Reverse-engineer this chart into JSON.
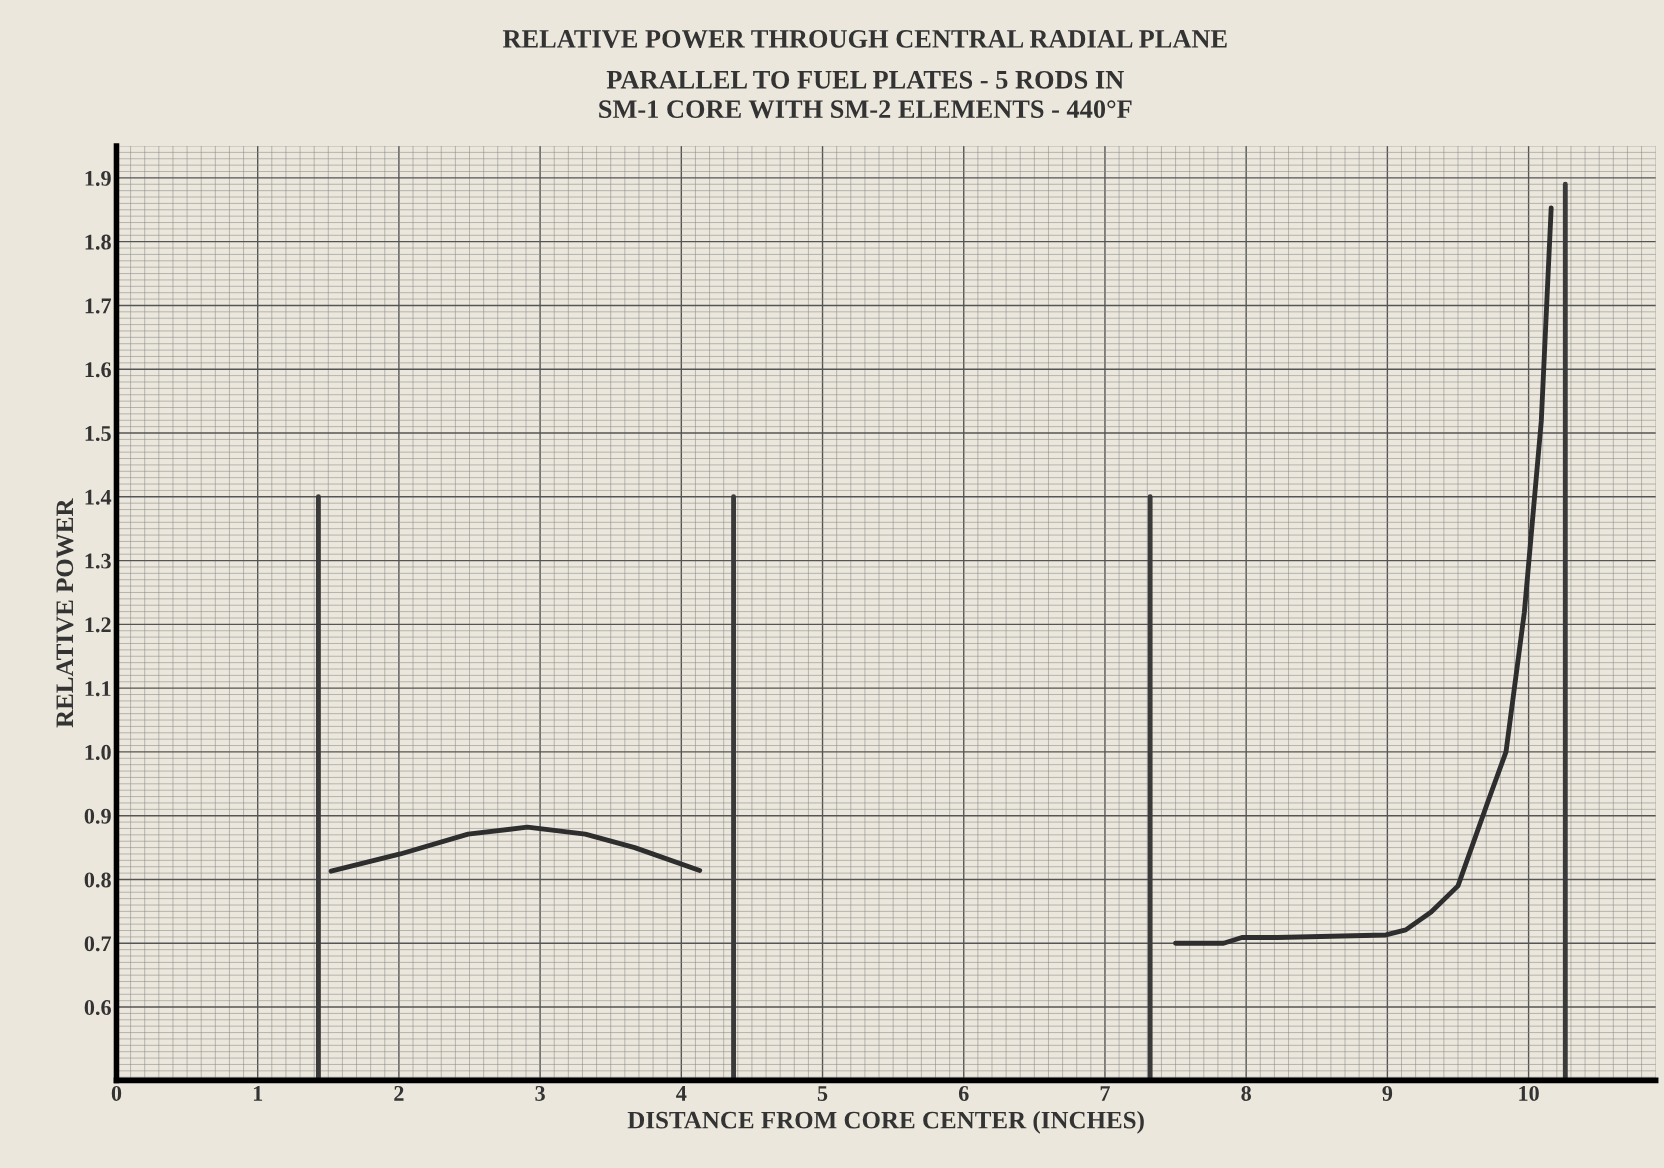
{
  "chart_data": {
    "type": "line",
    "title": "RELATIVE POWER THROUGH CENTRAL RADIAL PLANE",
    "subtitle": "PARALLEL TO FUEL PLATES - 5 RODS IN\nSM-1 CORE WITH SM-2 ELEMENTS - 440°F",
    "xlabel": "DISTANCE FROM CORE CENTER (INCHES)",
    "ylabel": "RELATIVE POWER",
    "xlim": [
      0,
      10.9
    ],
    "ylim": [
      0.485,
      1.95
    ],
    "xticks": [
      0,
      1,
      2,
      3,
      4,
      5,
      6,
      7,
      8,
      9,
      10
    ],
    "yticks": [
      0.6,
      0.7,
      0.8,
      0.9,
      {
        "value": 1.0,
        "label": "1.0"
      },
      1.1,
      1.2,
      1.3,
      1.4,
      1.5,
      1.6,
      1.7,
      1.8,
      1.9
    ],
    "grid": true,
    "marker": "none",
    "line_style": "solid",
    "legend": false,
    "series": [
      {
        "color": "#2e2e2e",
        "x": [
          1.52,
          2.01,
          2.49,
          2.91,
          3.32,
          3.67,
          4.13
        ],
        "values": [
          0.813,
          0.84,
          0.871,
          0.882,
          0.871,
          0.85,
          0.814
        ]
      },
      {
        "color": "#2e2e2e",
        "x": [
          7.5,
          7.84,
          7.97,
          8.22,
          8.99,
          9.13,
          9.31,
          9.5,
          9.72,
          9.84,
          9.97,
          10.09,
          10.16
        ],
        "values": [
          0.7,
          0.7,
          0.709,
          0.709,
          0.713,
          0.721,
          0.749,
          0.79,
          0.927,
          1.0,
          1.219,
          1.519,
          1.853
        ]
      },
      {
        "color": "#3a3a3a",
        "x": [
          1.43,
          1.43
        ],
        "values": [
          0.485,
          1.4
        ]
      },
      {
        "color": "#3a3a3a",
        "x": [
          4.37,
          4.37
        ],
        "values": [
          0.485,
          1.4
        ]
      },
      {
        "color": "#3a3a3a",
        "x": [
          7.32,
          7.32
        ],
        "values": [
          0.485,
          1.4
        ]
      },
      {
        "color": "#3a3a3a",
        "x": [
          10.26,
          10.26
        ],
        "values": [
          0.485,
          1.89
        ]
      }
    ]
  }
}
